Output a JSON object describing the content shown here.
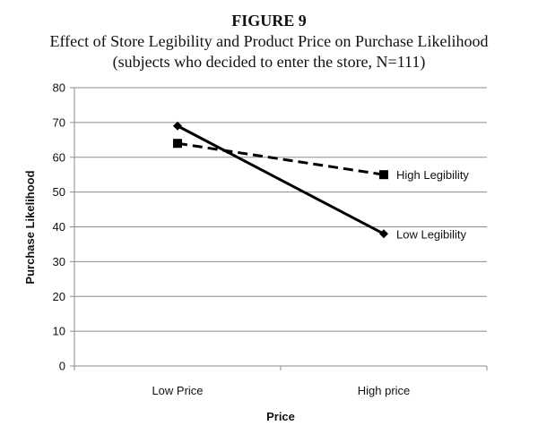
{
  "figure": {
    "title_line1": "FIGURE 9",
    "title_line2": "Effect of Store Legibility and Product Price on Purchase Likelihood",
    "title_line3": "(subjects who decided to enter the store, N=111)"
  },
  "chart_data": {
    "type": "line",
    "title": "Effect of Store Legibility and Product Price on Purchase Likelihood",
    "subtitle": "(subjects who decided to enter the store, N=111)",
    "xlabel": "Price",
    "ylabel": "Purchase Likelihood",
    "categories": [
      "Low Price",
      "High price"
    ],
    "ylim": [
      0,
      80
    ],
    "yticks": [
      0,
      10,
      20,
      30,
      40,
      50,
      60,
      70,
      80
    ],
    "grid": true,
    "legend": "inline labels at line ends",
    "series": [
      {
        "name": "High Legibility",
        "values": [
          64,
          55
        ],
        "line_style": "dashed",
        "marker": "square",
        "color": "#000000"
      },
      {
        "name": "Low Legibility",
        "values": [
          69,
          38
        ],
        "line_style": "solid",
        "marker": "diamond",
        "color": "#000000"
      }
    ]
  }
}
